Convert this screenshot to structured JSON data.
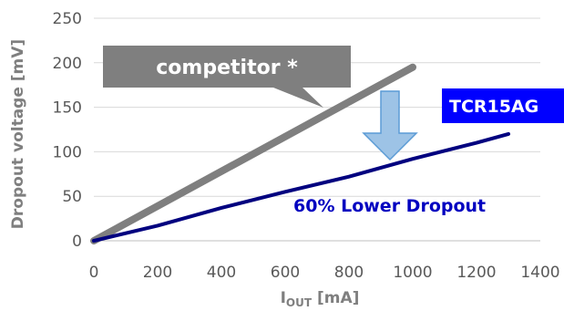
{
  "chart_data": {
    "type": "line",
    "ylabel": "Dropout voltage [mV]",
    "xlabel": {
      "main": "I",
      "sub": "OUT",
      "unit": " [mA]"
    },
    "xlim": [
      0,
      1400
    ],
    "ylim": [
      0,
      250
    ],
    "xticks": [
      0,
      200,
      400,
      600,
      800,
      1000,
      1200,
      1400
    ],
    "yticks": [
      0,
      50,
      100,
      150,
      200,
      250
    ],
    "grid": "horizontal",
    "series": [
      {
        "name": "competitor *",
        "color": "#7f7f7f",
        "x": [
          0,
          1000
        ],
        "y": [
          0,
          195
        ]
      },
      {
        "name": "TCR15AG",
        "color": "#00007f",
        "x": [
          0,
          200,
          400,
          600,
          800,
          1000,
          1200,
          1300
        ],
        "y": [
          0,
          17,
          37,
          55,
          72,
          92,
          110,
          120
        ]
      }
    ],
    "annotations": {
      "competitor_label": "competitor *",
      "tcr_label": "TCR15AG",
      "improvement": "60% Lower Dropout"
    }
  },
  "colors": {
    "grid": "#d9d9d9",
    "axis": "#bfbfbf",
    "callout_bg": "#7f7f7f",
    "tcr_bg": "#0000ff",
    "improvement_text": "#0000c0",
    "arrow_fill": "#9dc3e6",
    "arrow_stroke": "#5b9bd5"
  }
}
